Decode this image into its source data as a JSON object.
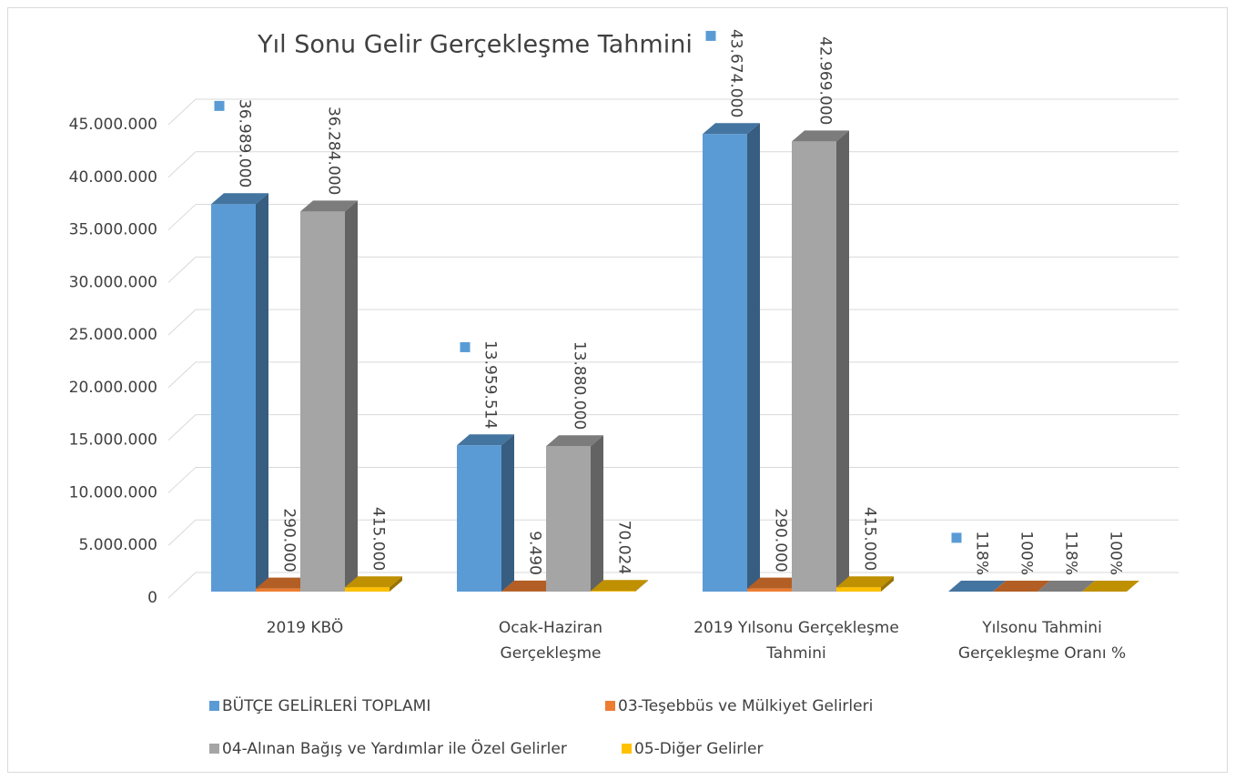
{
  "chart_data": {
    "type": "bar3d",
    "title": "Yıl Sonu Gelir Gerçekleşme Tahmini",
    "categories": [
      "2019 KBÖ",
      "Ocak-Haziran Gerçekleşme",
      "2019 Yılsonu Gerçekleşme Tahmini",
      "Yılsonu Tahmini Gerçekleşme Oranı %"
    ],
    "series": [
      {
        "name": "BÜTÇE GELİRLERİ TOPLAMI",
        "color": "#5b9bd5",
        "values": [
          36989000,
          13959514,
          43674000,
          118
        ],
        "value_labels": [
          "36.989.000",
          "13.959.514",
          "43.674.000",
          "118%"
        ]
      },
      {
        "name": "03-Teşebbüs ve Mülkiyet Gelirleri",
        "color": "#ed7d31",
        "values": [
          290000,
          9490,
          290000,
          100
        ],
        "value_labels": [
          "290.000",
          "9.490",
          "290.000",
          "100%"
        ]
      },
      {
        "name": "04-Alınan Bağış ve Yardımlar ile Özel Gelirler",
        "color": "#a5a5a5",
        "values": [
          36284000,
          13880000,
          42969000,
          118
        ],
        "value_labels": [
          "36.284.000",
          "13.880.000",
          "42.969.000",
          "118%"
        ]
      },
      {
        "name": "05-Diğer Gelirler",
        "color": "#ffc000",
        "values": [
          415000,
          70024,
          415000,
          100
        ],
        "value_labels": [
          "415.000",
          "70.024",
          "415.000",
          "100%"
        ]
      }
    ],
    "ylim": [
      0,
      45000000
    ],
    "yticks": [
      0,
      {
        "value": 5000000,
        "label": "5.000.000"
      },
      {
        "value": 10000000,
        "label": "10.000.000"
      },
      {
        "value": 15000000,
        "label": "15.000.000"
      },
      {
        "value": 20000000,
        "label": "20.000.000"
      },
      {
        "value": 25000000,
        "label": "25.000.000"
      },
      {
        "value": 30000000,
        "label": "30.000.000"
      },
      {
        "value": 35000000,
        "label": "35.000.000"
      },
      {
        "value": 40000000,
        "label": "40.000.000"
      },
      {
        "value": 45000000,
        "label": "45.000.000"
      }
    ],
    "grid": true,
    "legend": "bottom"
  }
}
